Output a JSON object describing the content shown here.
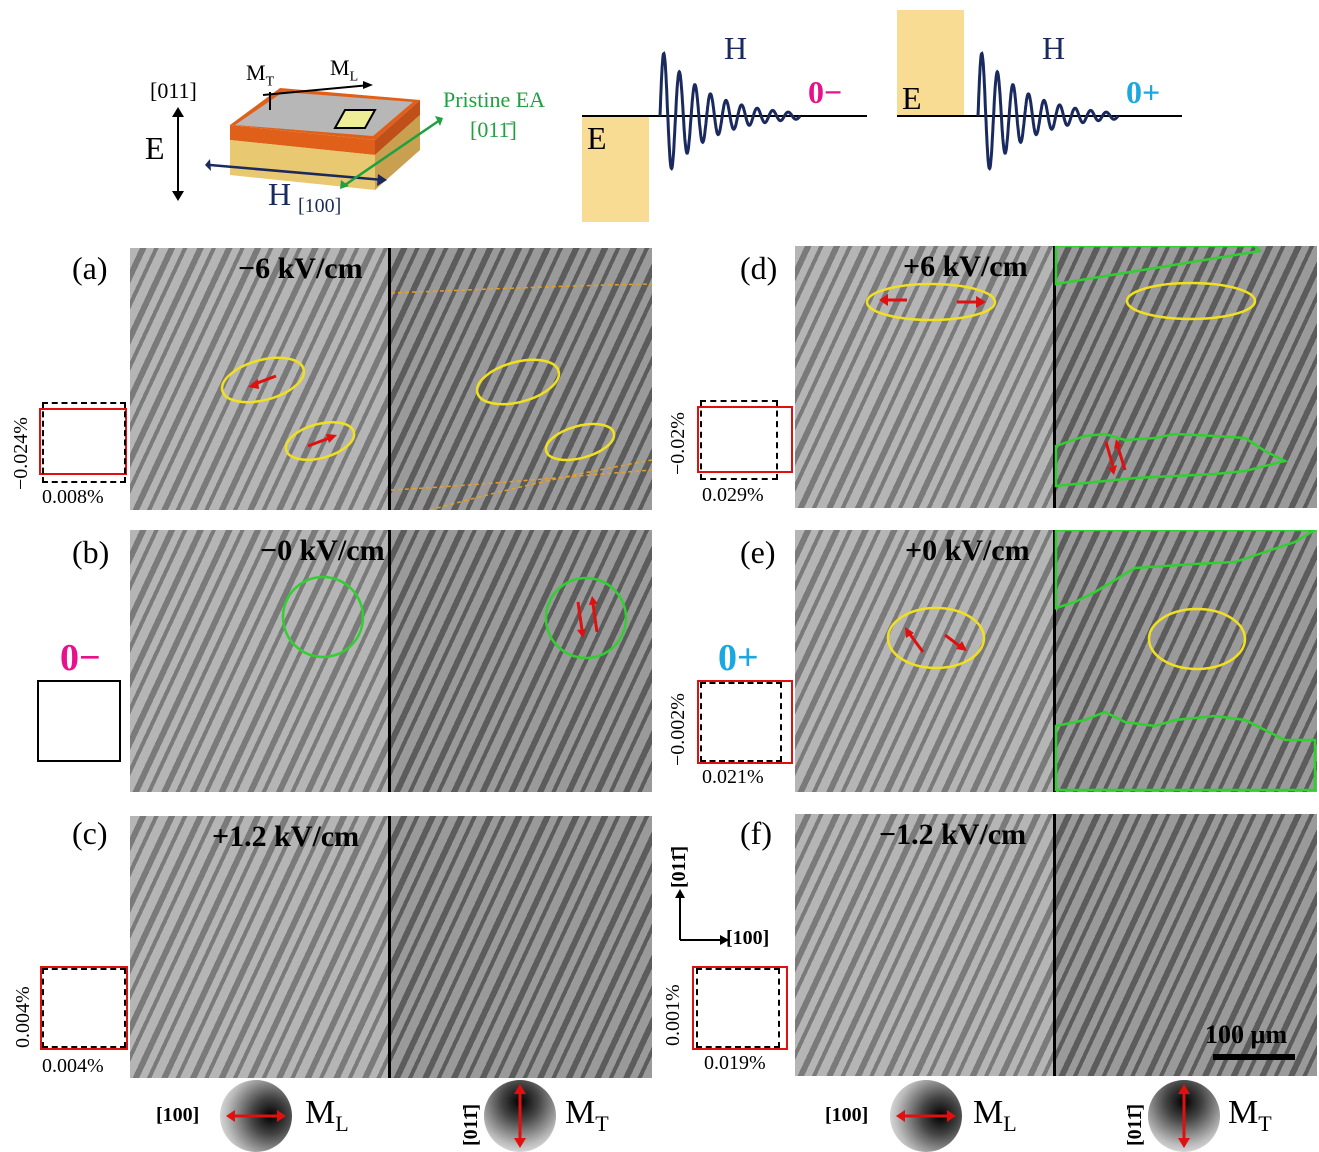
{
  "schematic": {
    "axis_011": "[011]",
    "e_label": "E",
    "mt_label": "M",
    "mt_sub": "T",
    "ml_label": "M",
    "ml_sub": "L",
    "pristine_ea": "Pristine EA",
    "pristine_dir": "[011̄]",
    "h_label": "H",
    "h_dir": "[100]"
  },
  "pulses": [
    {
      "e_label": "E",
      "h_label": "H",
      "state": "0",
      "sign": "−",
      "state_color": "#e8108c"
    },
    {
      "e_label": "E",
      "h_label": "H",
      "state": "0",
      "sign": "+",
      "state_color": "#1aa8e0"
    }
  ],
  "panels": [
    {
      "label": "(a)",
      "field": "−6 kV/cm",
      "pct_h": "0.008%",
      "pct_v": "−0.024%"
    },
    {
      "label": "(b)",
      "field": "−0 kV/cm",
      "state": "0",
      "sign": "−",
      "state_color": "#e8108c"
    },
    {
      "label": "(c)",
      "field": "+1.2 kV/cm",
      "pct_h": "0.004%",
      "pct_v": "0.004%"
    },
    {
      "label": "(d)",
      "field": "+6 kV/cm",
      "pct_h": "0.029%",
      "pct_v": "−0.02%"
    },
    {
      "label": "(e)",
      "field": "+0 kV/cm",
      "pct_h": "0.021%",
      "pct_v": "−0.002%",
      "state": "0",
      "sign": "+",
      "state_color": "#1aa8e0"
    },
    {
      "label": "(f)",
      "field": "−1.2 kV/cm",
      "pct_h": "0.019%",
      "pct_v": "0.001%"
    }
  ],
  "axes_indicator": {
    "horizontal": "[100]",
    "vertical": "[011̄]"
  },
  "scale_bar": "100 µm",
  "legend": {
    "left_ml_dir": "[100]",
    "left_mt_dir": "[011̄]",
    "right_ml_dir": "[100]",
    "right_mt_dir": "[011̄]",
    "ml": "M",
    "ml_sub": "L",
    "mt": "M",
    "mt_sub": "T"
  },
  "colors": {
    "red": "#e01010",
    "yellow": "#f0e020",
    "green": "#30d030",
    "navy": "#1a2a5e",
    "sand": "#f8dc94"
  }
}
